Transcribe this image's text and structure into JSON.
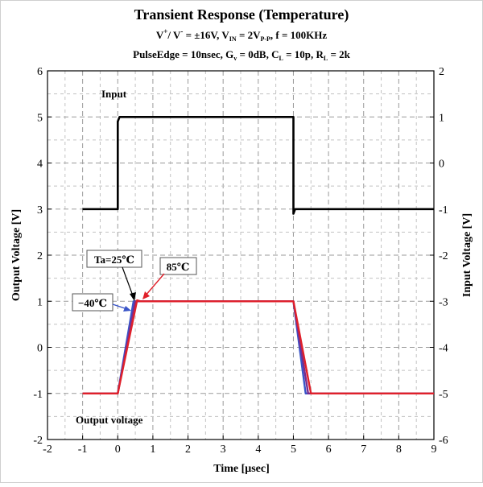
{
  "chart_data": {
    "type": "line",
    "title": "Transient Response (Temperature)",
    "subtitle_1": {
      "v": "V",
      "plus": "+",
      "slash": "/ V",
      "minus": "-",
      "eq": " = ±16V,  V",
      "in": "IN",
      "eq2": " = 2V",
      "pp": "P-P",
      "rest": ", f = 100KHz"
    },
    "subtitle_2": {
      "a": "PulseEdge = 10nsec, G",
      "gv": "v",
      "b": " = 0dB, C",
      "cl": "L",
      "c": " = 10p, R",
      "rl": "L",
      "d": " = 2k"
    },
    "xlabel": "Time [μsec]",
    "ylabel_left": "Output Voltage [V]",
    "ylabel_right": "Input Voltage [V]",
    "xlim": [
      -2,
      9
    ],
    "ylim_left": [
      -2,
      6
    ],
    "ylim_right": [
      -6,
      2
    ],
    "x_ticks": [
      "-2",
      "-1",
      "0",
      "1",
      "2",
      "3",
      "4",
      "5",
      "6",
      "7",
      "8",
      "9"
    ],
    "y_ticks_left": [
      "-2",
      "-1",
      "0",
      "1",
      "2",
      "3",
      "4",
      "5",
      "6"
    ],
    "y_ticks_right": [
      "-6",
      "-5",
      "-4",
      "-3",
      "-2",
      "-1",
      "0",
      "1",
      "2"
    ],
    "grid": true,
    "series": [
      {
        "name": "Input",
        "axis": "right",
        "color": "#000000",
        "x": [
          -1,
          0,
          0,
          0.05,
          5,
          5,
          5.05,
          5.1,
          9
        ],
        "y": [
          -1,
          -1,
          0.9,
          1,
          1,
          -1.1,
          -1,
          -1,
          -1
        ]
      },
      {
        "name": "-40℃",
        "axis": "left",
        "color": "#3a55c8",
        "x": [
          -1,
          0,
          0.45,
          0.55,
          5,
          5.35,
          9
        ],
        "y": [
          -1,
          -1,
          1,
          1,
          1,
          -1,
          -1
        ]
      },
      {
        "name": "Ta=25℃",
        "axis": "left",
        "color": "#7a2c8c",
        "x": [
          -1,
          0,
          0.5,
          0.6,
          5,
          5.42,
          9
        ],
        "y": [
          -1,
          -1,
          1,
          1,
          1,
          -1,
          -1
        ]
      },
      {
        "name": "85℃",
        "axis": "left",
        "color": "#e0202a",
        "x": [
          -1,
          0,
          0.55,
          0.65,
          5,
          5.5,
          9
        ],
        "y": [
          -1,
          -1,
          1.02,
          1,
          1,
          -1,
          -1
        ]
      }
    ],
    "annotations": {
      "input": "Input",
      "output": "Output voltage",
      "t25": "Ta=25℃",
      "t85": "85℃",
      "tm40": "−40℃"
    }
  }
}
